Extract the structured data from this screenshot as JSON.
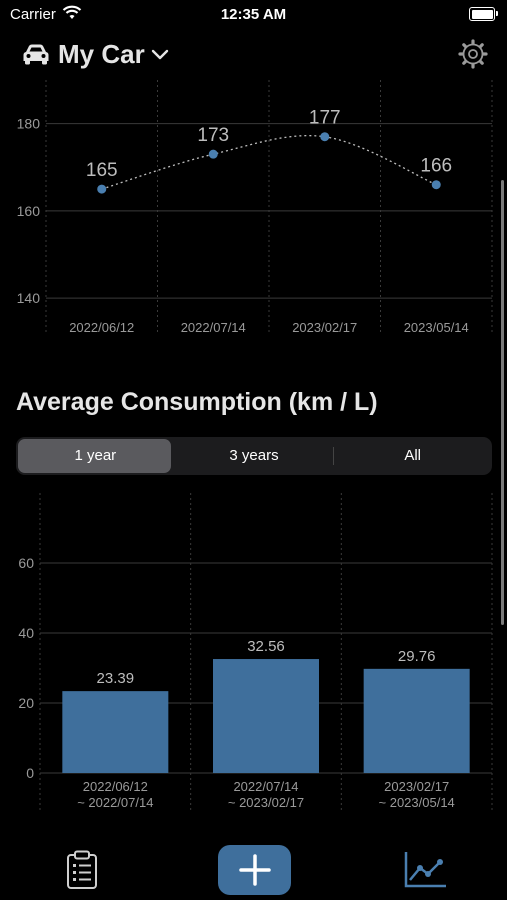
{
  "status_bar": {
    "carrier": "Carrier",
    "time": "12:35 AM"
  },
  "header": {
    "car_name": "My Car"
  },
  "line_chart": {
    "chart_data": {
      "type": "line",
      "categories": [
        "2022/06/12",
        "2022/07/14",
        "2023/02/17",
        "2023/05/14"
      ],
      "values": [
        165,
        173,
        177,
        166
      ],
      "yticks": [
        140,
        160,
        180
      ],
      "ylim": [
        135,
        190
      ],
      "color": "#4a7fb0"
    }
  },
  "consumption": {
    "title": "Average Consumption   (km / L)",
    "segments": [
      "1 year",
      "3 years",
      "All"
    ],
    "selected": "1 year"
  },
  "bar_chart": {
    "chart_data": {
      "type": "bar",
      "categories": [
        [
          "2022/06/12",
          "~ 2022/07/14"
        ],
        [
          "2022/07/14",
          "~ 2023/02/17"
        ],
        [
          "2023/02/17",
          "~ 2023/05/14"
        ]
      ],
      "values": [
        23.39,
        32.56,
        29.76
      ],
      "value_labels": [
        "23.39",
        "32.56",
        "29.76"
      ],
      "yticks": [
        0,
        20,
        40,
        60
      ],
      "ylim": [
        0,
        80
      ],
      "color": "#3f6f9c"
    }
  },
  "tabbar": {
    "items": [
      "list-icon",
      "add-icon",
      "chart-icon"
    ]
  }
}
